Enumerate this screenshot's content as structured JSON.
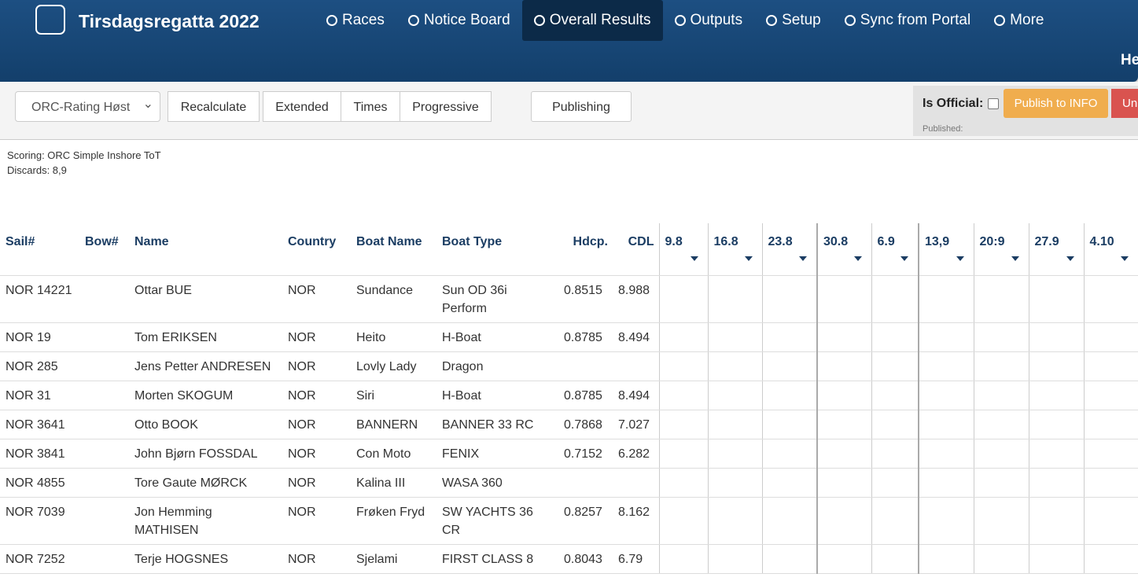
{
  "header": {
    "title": "Tirsdagsregatta 2022",
    "nav": [
      "Races",
      "Notice Board",
      "Overall Results",
      "Outputs",
      "Setup",
      "Sync from Portal",
      "More"
    ],
    "subnav": "He"
  },
  "toolbar": {
    "select": "ORC-Rating Høst",
    "buttons": [
      "Recalculate",
      "Extended",
      "Times",
      "Progressive"
    ],
    "publishing": "Publishing",
    "official_label": "Is Official:",
    "publish_info": "Publish to INFO",
    "unpublish": "Un",
    "published": "Published:"
  },
  "info": [
    "Scoring: ORC Simple Inshore ToT",
    "Discards: 8,9"
  ],
  "table": {
    "columns": [
      "Sail#",
      "Bow#",
      "Name",
      "Country",
      "Boat Name",
      "Boat Type",
      "Hdcp.",
      "CDL",
      "9.8",
      "16.8",
      "23.8",
      "30.8",
      "6.9",
      "13,9",
      "20:9",
      "27.9",
      "4.10"
    ],
    "rows": [
      [
        "NOR 14221",
        null,
        "Ottar BUE",
        "NOR",
        "Sundance",
        "Sun OD 36i Perform",
        "0.8515",
        "8.988"
      ],
      [
        "NOR 19",
        null,
        "Tom ERIKSEN",
        "NOR",
        "Heito",
        "H-Boat",
        "0.8785",
        "8.494"
      ],
      [
        "NOR 285",
        null,
        "Jens Petter ANDRESEN",
        "NOR",
        "Lovly Lady",
        "Dragon",
        null,
        null
      ],
      [
        "NOR 31",
        null,
        "Morten SKOGUM",
        "NOR",
        "Siri",
        "H-Boat",
        "0.8785",
        "8.494"
      ],
      [
        "NOR 3641",
        null,
        "Otto BOOK",
        "NOR",
        "BANNERN",
        "BANNER 33 RC",
        "0.7868",
        "7.027"
      ],
      [
        "NOR 3841",
        null,
        "John Bjørn FOSSDAL",
        "NOR",
        "Con Moto",
        "FENIX",
        "0.7152",
        "6.282"
      ],
      [
        "NOR 4855",
        null,
        "Tore Gaute MØRCK",
        "NOR",
        "Kalina III",
        "WASA 360",
        null,
        null
      ],
      [
        "NOR 7039",
        null,
        "Jon Hemming MATHISEN",
        "NOR",
        "Frøken Fryd",
        "SW YACHTS 36 CR",
        "0.8257",
        "8.162"
      ],
      [
        "NOR 7252",
        null,
        "Terje HOGSNES",
        "NOR",
        "Sjelami",
        "FIRST CLASS 8",
        "0.8043",
        "6.79"
      ]
    ]
  }
}
